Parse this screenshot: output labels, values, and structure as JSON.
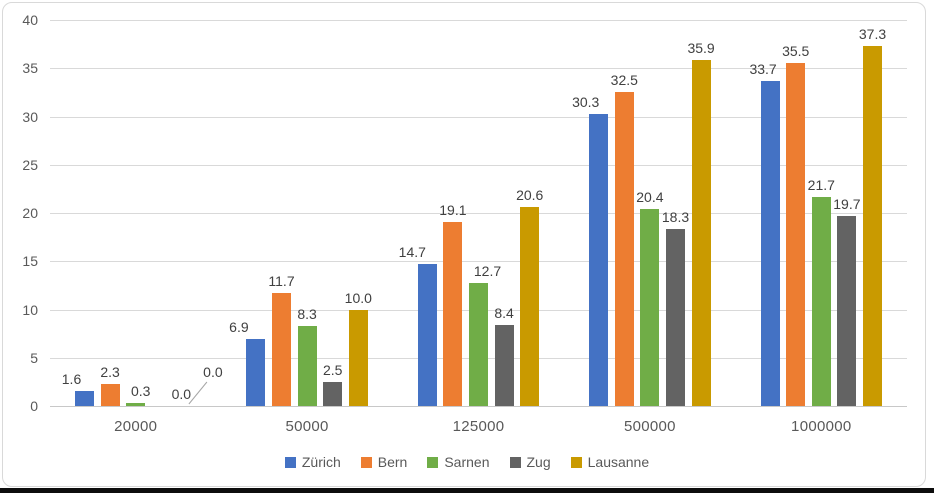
{
  "chart_data": {
    "type": "bar",
    "categories": [
      "20000",
      "50000",
      "125000",
      "500000",
      "1000000"
    ],
    "series": [
      {
        "name": "Zürich",
        "color": "#4472C4",
        "values": [
          1.6,
          6.9,
          14.7,
          30.3,
          33.7
        ]
      },
      {
        "name": "Bern",
        "color": "#ED7D31",
        "values": [
          2.3,
          11.7,
          19.1,
          32.5,
          35.5
        ]
      },
      {
        "name": "Sarnen",
        "color": "#70AD47",
        "values": [
          0.3,
          8.3,
          12.7,
          20.4,
          21.7
        ]
      },
      {
        "name": "Zug",
        "color": "#636363",
        "values": [
          0.0,
          2.5,
          8.4,
          18.3,
          19.7
        ]
      },
      {
        "name": "Lausanne",
        "color": "#C99A00",
        "values": [
          0.0,
          10.0,
          20.6,
          35.9,
          37.3
        ]
      }
    ],
    "ylim": [
      0,
      40
    ],
    "yticks": [
      0,
      5,
      10,
      15,
      20,
      25,
      30,
      35,
      40
    ],
    "grid": true,
    "data_labels": true,
    "label_decimals": 1,
    "legend_position": "bottom",
    "layout": {
      "gridline_color": "#D9D9D9",
      "axis_line_color": "#C8C8C8",
      "axis_text_color": "#595959",
      "data_label_color": "#404040",
      "leader_line_color": "#A6A6A6",
      "label_offsets": [
        {
          "g": 0,
          "s": 0,
          "dx": -13
        },
        {
          "g": 1,
          "s": 0,
          "dx": -17
        },
        {
          "g": 2,
          "s": 0,
          "dx": -15
        },
        {
          "g": 3,
          "s": 0,
          "dx": -13
        },
        {
          "g": 4,
          "s": 0,
          "dx": -7
        },
        {
          "g": 0,
          "s": 2,
          "dx": 5
        },
        {
          "g": 2,
          "s": 2,
          "dx": 9
        },
        {
          "g": 0,
          "s": 3,
          "dx": 20
        },
        {
          "g": 0,
          "s": 4,
          "dx": 26,
          "dy": -22,
          "leader": true
        }
      ]
    }
  }
}
